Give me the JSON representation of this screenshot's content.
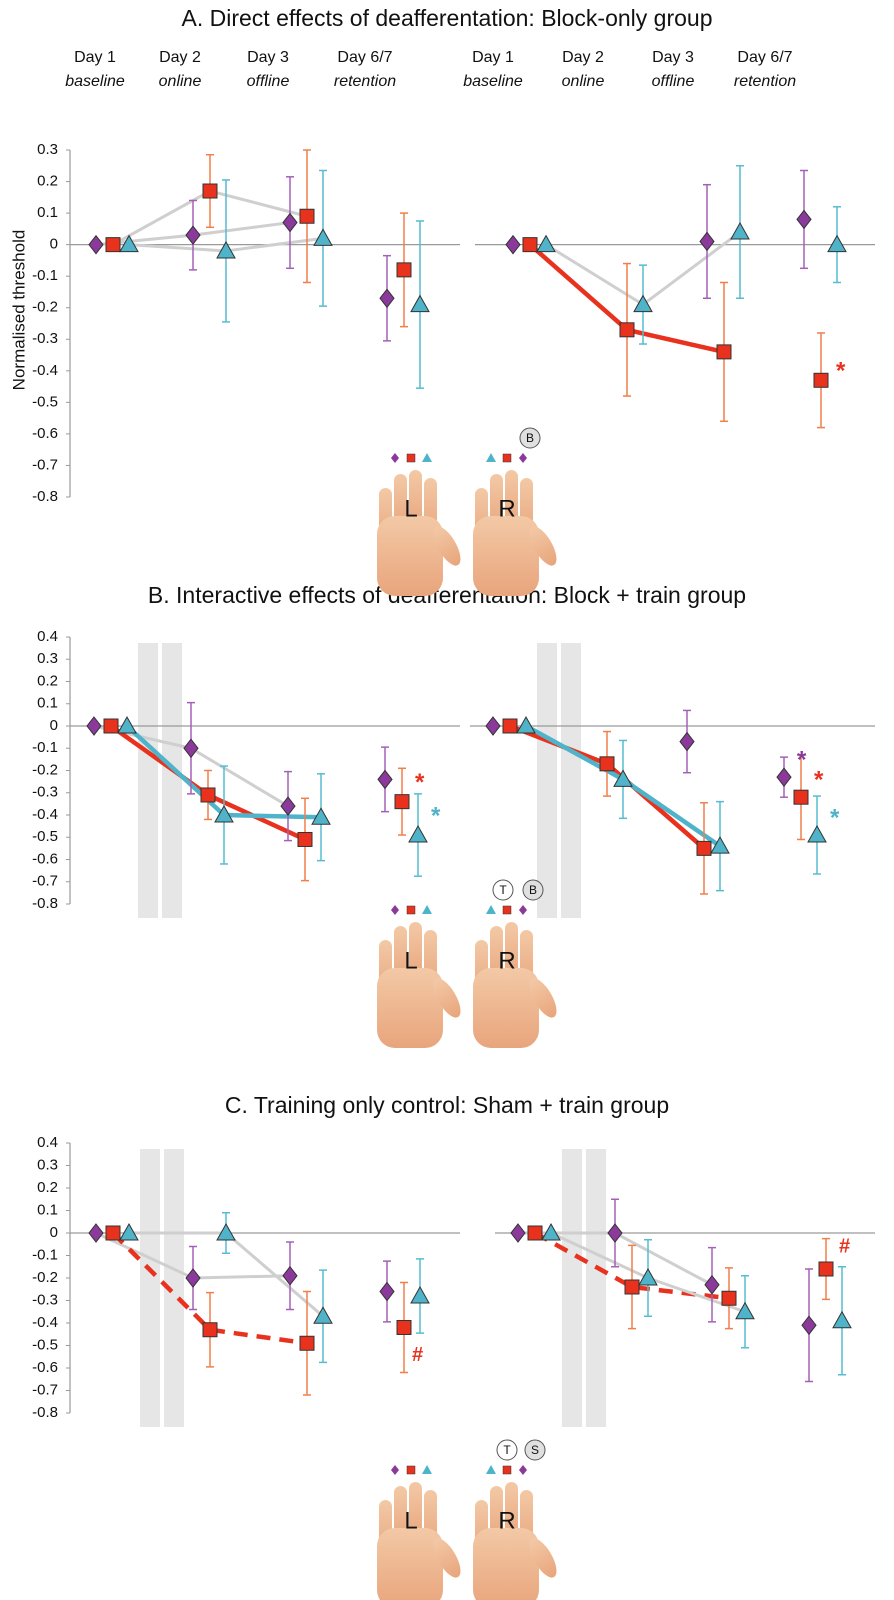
{
  "panels": [
    {
      "title": "A. Direct effects of deafferentation: Block-only group",
      "hand_labels": [
        "L",
        "R"
      ],
      "badges": [
        "B"
      ]
    },
    {
      "title": "B. Interactive effects of deafferentation: Block + train group",
      "hand_labels": [
        "L",
        "R"
      ],
      "badges": [
        "T",
        "B"
      ]
    },
    {
      "title": "C. Training only control: Sham + train group",
      "hand_labels": [
        "L",
        "R"
      ],
      "badges": [
        "T",
        "S"
      ]
    }
  ],
  "days": [
    "Day 1",
    "Day 2",
    "Day 3",
    "Day 6/7"
  ],
  "phases": [
    "baseline",
    "online",
    "offline",
    "retention"
  ],
  "y_label": "Normalised threshold",
  "chart_data": [
    {
      "type": "errorbar",
      "ylim": [
        -0.8,
        0.3
      ],
      "yticks": [
        0.3,
        0.2,
        0.1,
        0,
        -0.1,
        -0.2,
        -0.3,
        -0.4,
        -0.5,
        -0.6,
        -0.7,
        -0.8
      ],
      "series": [
        {
          "marker": "diamond",
          "color": "#8b3a9c",
          "line": "gray",
          "values": [
            0,
            0.03,
            0.07,
            -0.17
          ],
          "errors": [
            0,
            0.11,
            0.145,
            0.135
          ]
        },
        {
          "marker": "square",
          "color": "#e8321e",
          "line": "gray",
          "values": [
            0,
            0.17,
            0.09,
            -0.08
          ],
          "errors": [
            0,
            0.115,
            0.21,
            0.18
          ]
        },
        {
          "marker": "triangle",
          "color": "#4fb3c9",
          "line": "gray",
          "values": [
            0,
            -0.02,
            0.02,
            -0.19
          ],
          "errors": [
            0,
            0.225,
            0.215,
            0.265
          ]
        }
      ]
    },
    {
      "type": "errorbar",
      "ylim": [
        -0.8,
        0.3
      ],
      "series": [
        {
          "marker": "diamond",
          "color": "#8b3a9c",
          "line": "none",
          "values": [
            0,
            null,
            0.01,
            0.08
          ],
          "errors": [
            0,
            null,
            0.18,
            0.155
          ]
        },
        {
          "marker": "square",
          "color": "#e8321e",
          "line": "solid",
          "values": [
            0,
            -0.27,
            -0.34,
            -0.43
          ],
          "errors": [
            0,
            0.21,
            0.22,
            0.15
          ],
          "annotation": "*"
        },
        {
          "marker": "triangle",
          "color": "#4fb3c9",
          "line": "gray",
          "values": [
            0,
            -0.19,
            0.04,
            0
          ],
          "errors": [
            0,
            0.125,
            0.21,
            0.12
          ]
        }
      ]
    },
    {
      "type": "errorbar",
      "ylim": [
        -0.8,
        0.4
      ],
      "yticks": [
        0.4,
        0.3,
        0.2,
        0.1,
        0,
        -0.1,
        -0.2,
        -0.3,
        -0.4,
        -0.5,
        -0.6,
        -0.7,
        -0.8
      ],
      "shaded": true,
      "series": [
        {
          "marker": "diamond",
          "color": "#8b3a9c",
          "line": "gray",
          "values": [
            0,
            -0.1,
            -0.36,
            -0.24
          ],
          "errors": [
            0,
            0.205,
            0.155,
            0.145
          ]
        },
        {
          "marker": "square",
          "color": "#e8321e",
          "line": "solid",
          "values": [
            0,
            -0.31,
            -0.51,
            -0.34
          ],
          "errors": [
            0,
            0.11,
            0.185,
            0.15
          ],
          "annotation": "*"
        },
        {
          "marker": "triangle",
          "color": "#4fb3c9",
          "line": "solid",
          "values": [
            0,
            -0.4,
            -0.41,
            -0.49
          ],
          "errors": [
            0,
            0.22,
            0.195,
            0.185
          ],
          "annotation": "*"
        }
      ]
    },
    {
      "type": "errorbar",
      "ylim": [
        -0.8,
        0.4
      ],
      "shaded": true,
      "series": [
        {
          "marker": "diamond",
          "color": "#8b3a9c",
          "line": "none",
          "values": [
            0,
            null,
            -0.07,
            -0.23
          ],
          "errors": [
            0,
            null,
            0.14,
            0.09
          ],
          "annotation": "*"
        },
        {
          "marker": "square",
          "color": "#e8321e",
          "line": "solid",
          "values": [
            0,
            -0.17,
            -0.55,
            -0.32
          ],
          "errors": [
            0,
            0.145,
            0.205,
            0.19
          ],
          "annotation": "*"
        },
        {
          "marker": "triangle",
          "color": "#4fb3c9",
          "line": "solid",
          "values": [
            0,
            -0.24,
            -0.54,
            -0.49
          ],
          "errors": [
            0,
            0.175,
            0.2,
            0.175
          ],
          "annotation": "*"
        }
      ]
    },
    {
      "type": "errorbar",
      "ylim": [
        -0.8,
        0.4
      ],
      "yticks": [
        0.4,
        0.3,
        0.2,
        0.1,
        0,
        -0.1,
        -0.2,
        -0.3,
        -0.4,
        -0.5,
        -0.6,
        -0.7,
        -0.8
      ],
      "shaded": true,
      "series": [
        {
          "marker": "diamond",
          "color": "#8b3a9c",
          "line": "gray",
          "values": [
            0,
            -0.2,
            -0.19,
            -0.26
          ],
          "errors": [
            0,
            0.14,
            0.15,
            0.135
          ]
        },
        {
          "marker": "square",
          "color": "#e8321e",
          "line": "dashed",
          "values": [
            0,
            -0.43,
            -0.49,
            -0.42
          ],
          "errors": [
            0,
            0.165,
            0.23,
            0.2
          ],
          "annotation": "#"
        },
        {
          "marker": "triangle",
          "color": "#4fb3c9",
          "line": "gray",
          "values": [
            0,
            0,
            -0.37,
            -0.28
          ],
          "errors": [
            0,
            0.09,
            0.205,
            0.165
          ]
        }
      ]
    },
    {
      "type": "errorbar",
      "ylim": [
        -0.8,
        0.4
      ],
      "shaded": true,
      "series": [
        {
          "marker": "diamond",
          "color": "#8b3a9c",
          "line": "gray",
          "values": [
            0,
            0,
            -0.23,
            -0.41
          ],
          "errors": [
            0,
            0.15,
            0.165,
            0.25
          ]
        },
        {
          "marker": "square",
          "color": "#e8321e",
          "line": "dashed",
          "values": [
            0,
            -0.24,
            -0.29,
            -0.16
          ],
          "errors": [
            0,
            0.185,
            0.135,
            0.135
          ],
          "annotation": "#"
        },
        {
          "marker": "triangle",
          "color": "#4fb3c9",
          "line": "gray",
          "values": [
            0,
            -0.2,
            -0.35,
            -0.39
          ],
          "errors": [
            0,
            0.17,
            0.16,
            0.24
          ]
        }
      ]
    }
  ]
}
